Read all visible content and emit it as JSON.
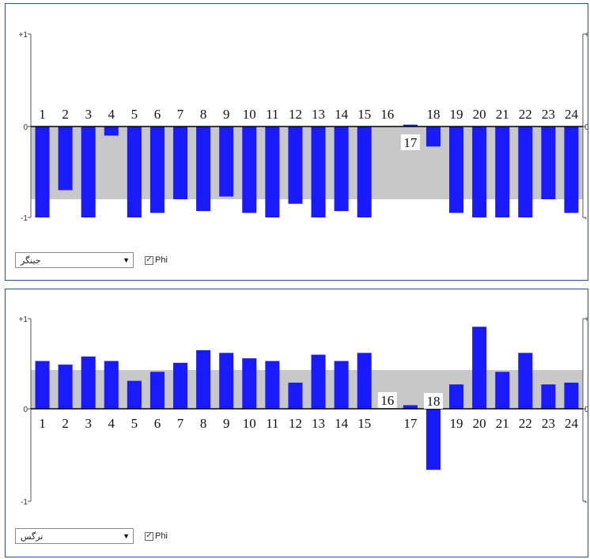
{
  "chart_data": [
    {
      "type": "bar",
      "categories": [
        "1",
        "2",
        "3",
        "4",
        "5",
        "6",
        "7",
        "8",
        "9",
        "10",
        "11",
        "12",
        "13",
        "14",
        "15",
        "16",
        "17",
        "18",
        "19",
        "20",
        "21",
        "22",
        "23",
        "24"
      ],
      "values": [
        -1.0,
        -0.7,
        -1.0,
        -0.1,
        -1.0,
        -0.95,
        -0.8,
        -0.93,
        -0.77,
        -0.95,
        -1.0,
        -0.85,
        -1.0,
        -0.93,
        -1.0,
        0.0,
        0.02,
        -0.22,
        -0.95,
        -1.0,
        -1.0,
        -1.0,
        -0.8,
        -0.95
      ],
      "ylim": [
        -1,
        1
      ],
      "band": [
        -0.8,
        0
      ],
      "axis_labels": {
        "top": "+1",
        "zero": "0",
        "bottom": "-1"
      },
      "colors": {
        "bar": "#1a1aff",
        "band": "#c8c8c8"
      },
      "dropdown_value": "جینگر",
      "checkbox_label": "Phi",
      "checkbox_checked": true
    },
    {
      "type": "bar",
      "categories": [
        "1",
        "2",
        "3",
        "4",
        "5",
        "6",
        "7",
        "8",
        "9",
        "10",
        "11",
        "12",
        "13",
        "14",
        "15",
        "16",
        "17",
        "18",
        "19",
        "20",
        "21",
        "22",
        "23",
        "24"
      ],
      "values": [
        0.53,
        0.49,
        0.58,
        0.53,
        0.31,
        0.41,
        0.51,
        0.65,
        0.62,
        0.56,
        0.53,
        0.29,
        0.6,
        0.53,
        0.62,
        0.0,
        0.04,
        -0.66,
        0.27,
        0.91,
        0.41,
        0.62,
        0.27,
        0.29
      ],
      "ylim": [
        -1,
        1
      ],
      "band": [
        0,
        0.43
      ],
      "axis_labels": {
        "top": "+1",
        "zero": "0",
        "bottom": "-1"
      },
      "colors": {
        "bar": "#1a1aff",
        "band": "#c8c8c8"
      },
      "dropdown_value": "نرگس",
      "checkbox_label": "Phi",
      "checkbox_checked": true
    }
  ]
}
